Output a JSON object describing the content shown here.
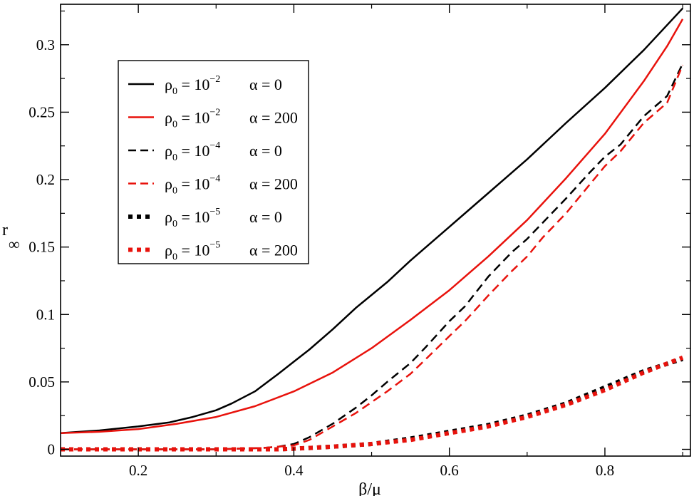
{
  "chart_data": {
    "type": "line",
    "title": "",
    "xlabel": "β/μ",
    "ylabel": "r",
    "ylabel_sub": "∞",
    "xlim": [
      0.1,
      0.91
    ],
    "ylim": [
      -0.005,
      0.33
    ],
    "x_ticks": [
      0.2,
      0.4,
      0.6,
      0.8
    ],
    "x_tick_labels": [
      "0.2",
      "0.4",
      "0.6",
      "0.8"
    ],
    "y_ticks": [
      0,
      0.05,
      0.1,
      0.15,
      0.2,
      0.25,
      0.3
    ],
    "y_tick_labels": [
      "0",
      "0.05",
      "0.1",
      "0.15",
      "0.2",
      "0.25",
      "0.3"
    ],
    "grid": false,
    "legend_position": "top-left",
    "legend": [
      {
        "rho_text": "ρ",
        "rho_sub": "0",
        "eq": " = 10",
        "exp": "−2",
        "alpha_text": "α = 0",
        "color": "#000000",
        "style": "solid"
      },
      {
        "rho_text": "ρ",
        "rho_sub": "0",
        "eq": " = 10",
        "exp": "−2",
        "alpha_text": "α = 200",
        "color": "#e8120c",
        "style": "solid"
      },
      {
        "rho_text": "ρ",
        "rho_sub": "0",
        "eq": " = 10",
        "exp": "−4",
        "alpha_text": "α = 0",
        "color": "#000000",
        "style": "dashed"
      },
      {
        "rho_text": "ρ",
        "rho_sub": "0",
        "eq": " = 10",
        "exp": "−4",
        "alpha_text": "α = 200",
        "color": "#e8120c",
        "style": "dashed"
      },
      {
        "rho_text": "ρ",
        "rho_sub": "0",
        "eq": " = 10",
        "exp": "−5",
        "alpha_text": "α = 0",
        "color": "#000000",
        "style": "dotted"
      },
      {
        "rho_text": "ρ",
        "rho_sub": "0",
        "eq": " = 10",
        "exp": "−5",
        "alpha_text": "α = 200",
        "color": "#e8120c",
        "style": "dotted"
      }
    ],
    "series": [
      {
        "color": "#000000",
        "style": "solid",
        "x": [
          0.1,
          0.15,
          0.2,
          0.24,
          0.27,
          0.3,
          0.32,
          0.35,
          0.38,
          0.4,
          0.42,
          0.45,
          0.48,
          0.52,
          0.55,
          0.6,
          0.65,
          0.7,
          0.75,
          0.8,
          0.85,
          0.9
        ],
        "y": [
          0.012,
          0.014,
          0.017,
          0.02,
          0.024,
          0.029,
          0.034,
          0.043,
          0.056,
          0.065,
          0.074,
          0.089,
          0.105,
          0.124,
          0.14,
          0.165,
          0.19,
          0.215,
          0.242,
          0.268,
          0.296,
          0.327
        ]
      },
      {
        "color": "#e8120c",
        "style": "solid",
        "x": [
          0.1,
          0.15,
          0.2,
          0.25,
          0.3,
          0.35,
          0.4,
          0.45,
          0.5,
          0.55,
          0.6,
          0.65,
          0.7,
          0.75,
          0.8,
          0.85,
          0.88,
          0.9
        ],
        "y": [
          0.012,
          0.013,
          0.015,
          0.019,
          0.024,
          0.032,
          0.043,
          0.057,
          0.075,
          0.096,
          0.118,
          0.143,
          0.17,
          0.201,
          0.234,
          0.273,
          0.299,
          0.319
        ]
      },
      {
        "color": "#000000",
        "style": "dashed",
        "x": [
          0.1,
          0.2,
          0.3,
          0.36,
          0.38,
          0.4,
          0.42,
          0.45,
          0.48,
          0.5,
          0.52,
          0.55,
          0.57,
          0.6,
          0.62,
          0.65,
          0.68,
          0.7,
          0.72,
          0.75,
          0.78,
          0.8,
          0.82,
          0.85,
          0.88,
          0.9
        ],
        "y": [
          0.0,
          0.0,
          0.0,
          0.001,
          0.002,
          0.004,
          0.009,
          0.019,
          0.031,
          0.04,
          0.05,
          0.064,
          0.076,
          0.095,
          0.106,
          0.128,
          0.146,
          0.156,
          0.168,
          0.186,
          0.205,
          0.217,
          0.226,
          0.247,
          0.262,
          0.286
        ]
      },
      {
        "color": "#e8120c",
        "style": "dashed",
        "x": [
          0.1,
          0.2,
          0.3,
          0.36,
          0.38,
          0.4,
          0.42,
          0.45,
          0.48,
          0.5,
          0.52,
          0.55,
          0.57,
          0.6,
          0.62,
          0.65,
          0.68,
          0.7,
          0.72,
          0.75,
          0.78,
          0.8,
          0.82,
          0.85,
          0.88,
          0.9
        ],
        "y": [
          0.0,
          0.0,
          0.0,
          0.001,
          0.002,
          0.003,
          0.007,
          0.017,
          0.027,
          0.035,
          0.043,
          0.056,
          0.067,
          0.084,
          0.095,
          0.114,
          0.132,
          0.143,
          0.157,
          0.175,
          0.196,
          0.21,
          0.221,
          0.242,
          0.257,
          0.285
        ]
      },
      {
        "color": "#000000",
        "style": "dotted",
        "x": [
          0.1,
          0.2,
          0.3,
          0.38,
          0.42,
          0.45,
          0.5,
          0.55,
          0.6,
          0.65,
          0.7,
          0.75,
          0.8,
          0.85,
          0.9
        ],
        "y": [
          0.0,
          0.0,
          0.0,
          0.0,
          0.001,
          0.002,
          0.004,
          0.008,
          0.013,
          0.018,
          0.025,
          0.034,
          0.046,
          0.058,
          0.067
        ]
      },
      {
        "color": "#e8120c",
        "style": "dotted",
        "x": [
          0.1,
          0.2,
          0.3,
          0.38,
          0.42,
          0.45,
          0.5,
          0.55,
          0.6,
          0.65,
          0.7,
          0.75,
          0.8,
          0.85,
          0.9
        ],
        "y": [
          0.0,
          0.0,
          0.0,
          0.0,
          0.001,
          0.002,
          0.004,
          0.007,
          0.012,
          0.017,
          0.024,
          0.033,
          0.044,
          0.057,
          0.068
        ]
      }
    ]
  }
}
